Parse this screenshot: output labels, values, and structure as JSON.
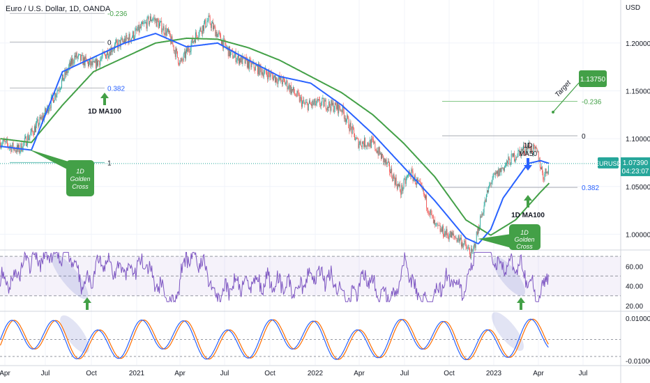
{
  "chart_data": {
    "type": "candlestick",
    "title": "Euro / U.S. Dollar, 1D, OANDA",
    "currency": "USD",
    "symbol": "EURUSD",
    "last_price": "1.07390",
    "countdown": "04:23:07",
    "x_labels": [
      "Apr",
      "Jul",
      "Oct",
      "2021",
      "Apr",
      "Jul",
      "Oct",
      "2022",
      "Apr",
      "Jul",
      "Oct",
      "2023",
      "Apr",
      "Jul"
    ],
    "price_ticks": [
      "1.20000",
      "1.15000",
      "1.10000",
      "1.05000",
      "1.00000"
    ],
    "price_ylim": [
      0.985,
      1.245
    ],
    "series_keypoints": {
      "price": [
        [
          0,
          1.0965
        ],
        [
          0.03,
          1.088
        ],
        [
          0.07,
          1.124
        ],
        [
          0.12,
          1.186
        ],
        [
          0.15,
          1.176
        ],
        [
          0.18,
          1.195
        ],
        [
          0.21,
          1.206
        ],
        [
          0.245,
          1.2265
        ],
        [
          0.27,
          1.21
        ],
        [
          0.29,
          1.178
        ],
        [
          0.315,
          1.208
        ],
        [
          0.335,
          1.224
        ],
        [
          0.37,
          1.189
        ],
        [
          0.4,
          1.178
        ],
        [
          0.43,
          1.168
        ],
        [
          0.46,
          1.158
        ],
        [
          0.49,
          1.135
        ],
        [
          0.52,
          1.137
        ],
        [
          0.55,
          1.131
        ],
        [
          0.575,
          1.096
        ],
        [
          0.6,
          1.095
        ],
        [
          0.625,
          1.07
        ],
        [
          0.645,
          1.045
        ],
        [
          0.66,
          1.065
        ],
        [
          0.68,
          1.045
        ],
        [
          0.7,
          1.008
        ],
        [
          0.72,
          1.0
        ],
        [
          0.74,
          0.995
        ],
        [
          0.76,
          0.978
        ],
        [
          0.775,
          1.02
        ],
        [
          0.79,
          1.055
        ],
        [
          0.81,
          1.07
        ],
        [
          0.83,
          1.083
        ],
        [
          0.85,
          1.092
        ],
        [
          0.865,
          1.085
        ],
        [
          0.875,
          1.06
        ],
        [
          0.885,
          1.0739
        ]
      ],
      "ma50": [
        [
          0,
          1.092
        ],
        [
          0.05,
          1.088
        ],
        [
          0.1,
          1.17
        ],
        [
          0.15,
          1.185
        ],
        [
          0.2,
          1.2
        ],
        [
          0.25,
          1.21
        ],
        [
          0.3,
          1.196
        ],
        [
          0.35,
          1.2
        ],
        [
          0.4,
          1.182
        ],
        [
          0.45,
          1.165
        ],
        [
          0.5,
          1.158
        ],
        [
          0.55,
          1.135
        ],
        [
          0.6,
          1.105
        ],
        [
          0.65,
          1.07
        ],
        [
          0.7,
          1.035
        ],
        [
          0.75,
          0.996
        ],
        [
          0.77,
          0.99
        ],
        [
          0.79,
          1.005
        ],
        [
          0.81,
          1.038
        ],
        [
          0.83,
          1.056
        ],
        [
          0.85,
          1.074
        ],
        [
          0.87,
          1.077
        ],
        [
          0.885,
          1.0739
        ]
      ],
      "ma100": [
        [
          0,
          1.1
        ],
        [
          0.05,
          1.096
        ],
        [
          0.1,
          1.135
        ],
        [
          0.15,
          1.17
        ],
        [
          0.2,
          1.185
        ],
        [
          0.25,
          1.2
        ],
        [
          0.3,
          1.205
        ],
        [
          0.35,
          1.204
        ],
        [
          0.4,
          1.195
        ],
        [
          0.45,
          1.182
        ],
        [
          0.5,
          1.165
        ],
        [
          0.55,
          1.148
        ],
        [
          0.6,
          1.125
        ],
        [
          0.65,
          1.095
        ],
        [
          0.7,
          1.06
        ],
        [
          0.75,
          1.015
        ],
        [
          0.79,
          0.999
        ],
        [
          0.83,
          1.015
        ],
        [
          0.87,
          1.044
        ],
        [
          0.885,
          1.054
        ]
      ]
    },
    "fibonacci": {
      "set1": [
        {
          "level": "-0.236",
          "price": 1.231,
          "color": "#43a047"
        },
        {
          "level": "0",
          "price": 1.201,
          "color": "#131722"
        },
        {
          "level": "0.382",
          "price": 1.153,
          "color": "#2962ff"
        },
        {
          "level": "1",
          "price": 1.075,
          "color": "#131722"
        }
      ],
      "set2": [
        {
          "level": "-0.236",
          "price": 1.139,
          "color": "#43a047"
        },
        {
          "level": "0",
          "price": 1.103,
          "color": "#131722"
        },
        {
          "level": "0.382",
          "price": 1.049,
          "color": "#2962ff"
        }
      ]
    },
    "annotations": [
      {
        "text": "1D MA100",
        "kind": "up-arrow-green"
      },
      {
        "text": "1D Golden Cross",
        "kind": "callout"
      },
      {
        "text": "1D Golden Cross",
        "kind": "callout"
      },
      {
        "text": "1D MA50",
        "kind": "down-arrow-blue"
      },
      {
        "text": "1D MA100",
        "kind": "up-arrow-green"
      },
      {
        "text": "Target",
        "kind": "target-line"
      },
      {
        "text": "1.13750",
        "kind": "target-badge"
      }
    ],
    "rsi": {
      "ticks": [
        "60.00",
        "40.00",
        "20.00"
      ],
      "ylim": [
        15,
        75
      ],
      "upper": 70,
      "mid": 50,
      "lower": 30
    },
    "oscillator": {
      "ticks": [
        "0.01000",
        "-0.01000"
      ],
      "ylim": [
        -0.012,
        0.013
      ]
    },
    "colors": {
      "candle_up": "#26a69a",
      "candle_down": "#ef5350",
      "ma50": "#2962ff",
      "ma100": "#43a047",
      "rsi": "#7e57c2",
      "osc_a": "#2962ff",
      "osc_b": "#ff6d00",
      "callout": "#43a047",
      "last_price_badge": "#26a69a"
    }
  }
}
